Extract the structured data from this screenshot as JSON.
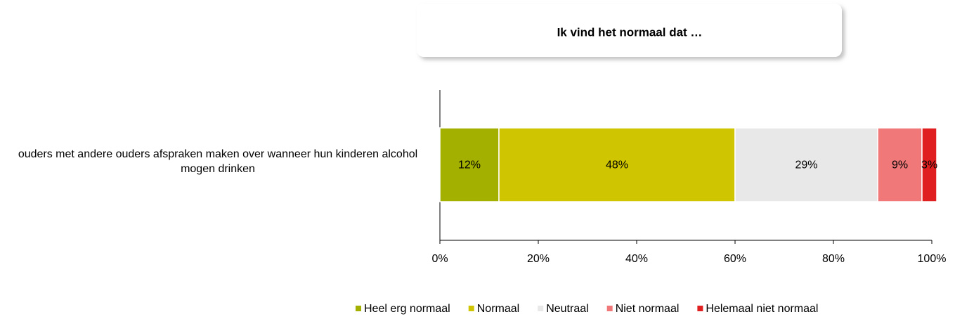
{
  "chart_data": {
    "type": "stacked-bar-horizontal",
    "title": "Ik vind het normaal dat …",
    "categories": [
      "ouders met andere ouders afspraken maken over wanneer hun kinderen alcohol mogen drinken"
    ],
    "series": [
      {
        "name": "Heel erg normaal",
        "color": "#a3b000",
        "values": [
          12
        ],
        "value_labels": [
          "12%"
        ]
      },
      {
        "name": "Normaal",
        "color": "#cfc500",
        "values": [
          48
        ],
        "value_labels": [
          "48%"
        ]
      },
      {
        "name": "Neutraal",
        "color": "#e8e8e8",
        "values": [
          29
        ],
        "value_labels": [
          "29%"
        ]
      },
      {
        "name": "Niet normaal",
        "color": "#f07878",
        "values": [
          9
        ],
        "value_labels": [
          "9%"
        ]
      },
      {
        "name": "Helemaal niet normaal",
        "color": "#e02020",
        "values": [
          3
        ],
        "value_labels": [
          "3%"
        ]
      }
    ],
    "xlim": [
      0,
      100
    ],
    "xticks": [
      {
        "value": 0,
        "label": "0%"
      },
      {
        "value": 20,
        "label": "20%"
      },
      {
        "value": 40,
        "label": "40%"
      },
      {
        "value": 60,
        "label": "60%"
      },
      {
        "value": 80,
        "label": "80%"
      },
      {
        "value": 100,
        "label": "100%"
      }
    ],
    "legend": "bottom"
  }
}
